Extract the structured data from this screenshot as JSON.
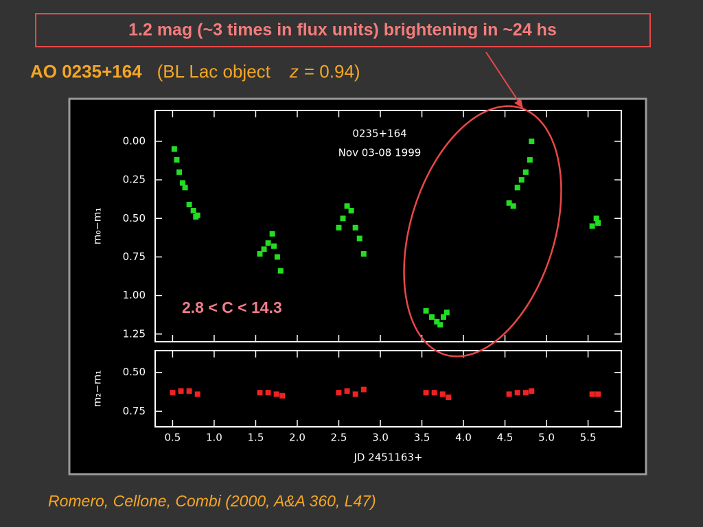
{
  "header": {
    "callout": "1.2 mag (~3 times in flux units) brightening in ~24 hs",
    "object": "AO 0235+164",
    "kind": "(BL Lac object",
    "z_symbol": "z",
    "z_value": "= 0.94)",
    "annotation": "2.8 < C < 14.3",
    "citation": "Romero, Cellone, Combi (2000, A&A 360, L47)"
  },
  "chart_data": [
    {
      "type": "scatter",
      "title": "0235+164",
      "subtitle": "Nov 03-08 1999",
      "ylabel": "m₀−m₁",
      "color": "#22dd22",
      "x": [
        0.52,
        0.55,
        0.58,
        0.62,
        0.65,
        0.7,
        0.75,
        0.78,
        0.8,
        1.55,
        1.6,
        1.65,
        1.7,
        1.72,
        1.76,
        1.8,
        2.5,
        2.55,
        2.6,
        2.65,
        2.7,
        2.75,
        2.8,
        3.55,
        3.62,
        3.68,
        3.72,
        3.76,
        3.8,
        4.55,
        4.6,
        4.65,
        4.7,
        4.75,
        4.8,
        4.82,
        5.55,
        5.6,
        5.62
      ],
      "values": [
        0.05,
        0.12,
        0.2,
        0.27,
        0.3,
        0.41,
        0.45,
        0.49,
        0.48,
        0.73,
        0.7,
        0.66,
        0.6,
        0.68,
        0.75,
        0.84,
        0.56,
        0.5,
        0.42,
        0.45,
        0.56,
        0.63,
        0.73,
        1.1,
        1.14,
        1.17,
        1.19,
        1.14,
        1.11,
        0.4,
        0.42,
        0.3,
        0.25,
        0.2,
        0.12,
        0.0,
        0.55,
        0.5,
        0.53
      ],
      "xlim": [
        0.29,
        5.9
      ],
      "ylim": [
        1.3,
        -0.2
      ],
      "yticks": [
        {
          "value": 0,
          "label": "0.00"
        },
        {
          "value": 0.25,
          "label": "0.25"
        },
        {
          "value": 0.5,
          "label": "0.50"
        },
        {
          "value": 0.75,
          "label": "0.75"
        },
        {
          "value": 1,
          "label": "1.00"
        },
        {
          "value": 1.25,
          "label": "1.25"
        }
      ]
    },
    {
      "type": "scatter",
      "ylabel": "m₂−m₁",
      "xlabel": "JD 2451163+",
      "color": "#ee2222",
      "x": [
        0.5,
        0.6,
        0.7,
        0.8,
        1.55,
        1.65,
        1.75,
        1.82,
        2.5,
        2.6,
        2.7,
        2.8,
        3.55,
        3.65,
        3.75,
        3.82,
        4.55,
        4.65,
        4.75,
        4.82,
        5.55,
        5.62
      ],
      "values": [
        0.63,
        0.62,
        0.62,
        0.64,
        0.63,
        0.63,
        0.64,
        0.65,
        0.63,
        0.62,
        0.64,
        0.61,
        0.63,
        0.63,
        0.64,
        0.66,
        0.64,
        0.63,
        0.63,
        0.62,
        0.64,
        0.64
      ],
      "xlim": [
        0.29,
        5.9
      ],
      "ylim": [
        0.85,
        0.36
      ],
      "xticks": [
        0.5,
        {
          "value": 1,
          "label": "1.0"
        },
        1.5,
        {
          "value": 2,
          "label": "2.0"
        },
        2.5,
        {
          "value": 3,
          "label": "3.0"
        },
        3.5,
        {
          "value": 4,
          "label": "4.0"
        },
        4.5,
        {
          "value": 5,
          "label": "5.0"
        },
        5.5
      ],
      "yticks": [
        {
          "value": 0.5,
          "label": "0.50"
        },
        {
          "value": 0.75,
          "label": "0.75"
        }
      ]
    }
  ]
}
